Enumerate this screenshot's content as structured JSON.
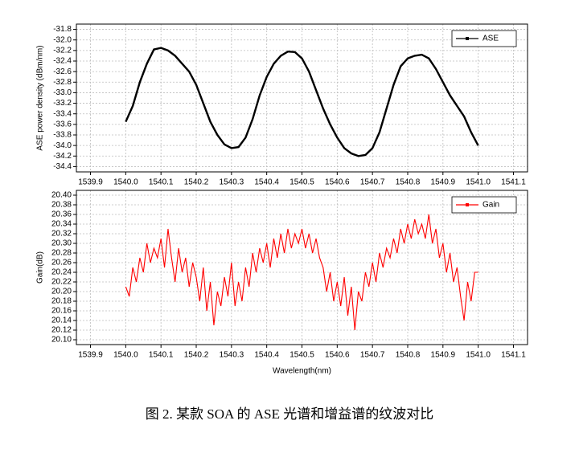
{
  "caption": "图 2. 某款 SOA 的 ASE 光谱和增益谱的纹波对比",
  "chart_data": [
    {
      "type": "line",
      "ylabel": "ASE power density (dBm/nm)",
      "legend": "upper right",
      "grid": true,
      "xlim": [
        1539.86,
        1541.14
      ],
      "ylim": [
        -34.5,
        -31.7
      ],
      "xticks": [
        1539.9,
        {
          "value": 1540,
          "label": "1540.0"
        },
        1540.1,
        1540.2,
        1540.3,
        1540.4,
        1540.5,
        1540.6,
        1540.7,
        1540.8,
        1540.9,
        {
          "value": 1541,
          "label": "1541.0"
        },
        1541.1
      ],
      "yticks": [
        -31.8,
        {
          "value": -32,
          "label": "-32.0"
        },
        -32.2,
        -32.4,
        -32.6,
        -32.8,
        {
          "value": -33,
          "label": "-33.0"
        },
        -33.2,
        -33.4,
        -33.6,
        -33.8,
        {
          "value": -34,
          "label": "-34.0"
        },
        -34.2,
        -34.4
      ],
      "x": [
        1540,
        1540.02,
        1540.04,
        1540.06,
        1540.08,
        1540.1,
        1540.12,
        1540.14,
        1540.16,
        1540.18,
        1540.2,
        1540.22,
        1540.24,
        1540.26,
        1540.28,
        1540.3,
        1540.32,
        1540.34,
        1540.36,
        1540.38,
        1540.4,
        1540.42,
        1540.44,
        1540.46,
        1540.48,
        1540.5,
        1540.52,
        1540.54,
        1540.56,
        1540.58,
        1540.6,
        1540.62,
        1540.64,
        1540.66,
        1540.68,
        1540.7,
        1540.72,
        1540.74,
        1540.76,
        1540.78,
        1540.8,
        1540.82,
        1540.84,
        1540.86,
        1540.88,
        1540.9,
        1540.92,
        1540.94,
        1540.96,
        1540.98,
        1541
      ],
      "series": [
        {
          "name": "ASE",
          "color": "#000000",
          "values": [
            -33.55,
            -33.25,
            -32.8,
            -32.45,
            -32.18,
            -32.15,
            -32.2,
            -32.3,
            -32.45,
            -32.6,
            -32.85,
            -33.2,
            -33.55,
            -33.8,
            -33.98,
            -34.05,
            -34.03,
            -33.85,
            -33.5,
            -33.05,
            -32.7,
            -32.45,
            -32.3,
            -32.22,
            -32.23,
            -32.35,
            -32.6,
            -32.95,
            -33.3,
            -33.6,
            -33.85,
            -34.05,
            -34.15,
            -34.2,
            -34.18,
            -34.05,
            -33.75,
            -33.3,
            -32.85,
            -32.5,
            -32.35,
            -32.3,
            -32.28,
            -32.35,
            -32.55,
            -32.8,
            -33.05,
            -33.25,
            -33.45,
            -33.75,
            -34.0
          ]
        }
      ]
    },
    {
      "type": "line",
      "xlabel": "Wavelength(nm)",
      "ylabel": "Gain(dB)",
      "legend": "upper right",
      "grid": true,
      "xlim": [
        1539.86,
        1541.14
      ],
      "ylim": [
        20.09,
        20.41
      ],
      "xticks": [
        1539.9,
        {
          "value": 1540,
          "label": "1540.0"
        },
        1540.1,
        1540.2,
        1540.3,
        1540.4,
        1540.5,
        1540.6,
        1540.7,
        1540.8,
        1540.9,
        {
          "value": 1541,
          "label": "1541.0"
        },
        1541.1
      ],
      "yticks": [
        {
          "value": 20.1,
          "label": "20.10"
        },
        20.12,
        20.14,
        20.16,
        20.18,
        {
          "value": 20.2,
          "label": "20.20"
        },
        20.22,
        20.24,
        20.26,
        20.28,
        {
          "value": 20.3,
          "label": "20.30"
        },
        20.32,
        20.34,
        20.36,
        20.38,
        {
          "value": 20.4,
          "label": "20.40"
        }
      ],
      "x": [
        1540,
        1540.01,
        1540.02,
        1540.03,
        1540.04,
        1540.05,
        1540.06,
        1540.07,
        1540.08,
        1540.09,
        1540.1,
        1540.11,
        1540.12,
        1540.13,
        1540.14,
        1540.15,
        1540.16,
        1540.17,
        1540.18,
        1540.19,
        1540.2,
        1540.21,
        1540.22,
        1540.23,
        1540.24,
        1540.25,
        1540.26,
        1540.27,
        1540.28,
        1540.29,
        1540.3,
        1540.31,
        1540.32,
        1540.33,
        1540.34,
        1540.35,
        1540.36,
        1540.37,
        1540.38,
        1540.39,
        1540.4,
        1540.41,
        1540.42,
        1540.43,
        1540.44,
        1540.45,
        1540.46,
        1540.47,
        1540.48,
        1540.49,
        1540.5,
        1540.51,
        1540.52,
        1540.53,
        1540.54,
        1540.55,
        1540.56,
        1540.57,
        1540.58,
        1540.59,
        1540.6,
        1540.61,
        1540.62,
        1540.63,
        1540.64,
        1540.65,
        1540.66,
        1540.67,
        1540.68,
        1540.69,
        1540.7,
        1540.71,
        1540.72,
        1540.73,
        1540.74,
        1540.75,
        1540.76,
        1540.77,
        1540.78,
        1540.79,
        1540.8,
        1540.81,
        1540.82,
        1540.83,
        1540.84,
        1540.85,
        1540.86,
        1540.87,
        1540.88,
        1540.89,
        1540.9,
        1540.91,
        1540.92,
        1540.93,
        1540.94,
        1540.95,
        1540.96,
        1540.97,
        1540.98,
        1540.99,
        1541
      ],
      "series": [
        {
          "name": "Gain",
          "color": "#ff0000",
          "values": [
            20.21,
            20.19,
            20.25,
            20.22,
            20.27,
            20.24,
            20.3,
            20.26,
            20.29,
            20.27,
            20.31,
            20.25,
            20.33,
            20.27,
            20.22,
            20.29,
            20.24,
            20.27,
            20.21,
            20.26,
            20.23,
            20.18,
            20.25,
            20.16,
            20.22,
            20.13,
            20.2,
            20.17,
            20.23,
            20.19,
            20.26,
            20.17,
            20.22,
            20.18,
            20.25,
            20.21,
            20.28,
            20.24,
            20.29,
            20.26,
            20.3,
            20.25,
            20.31,
            20.27,
            20.32,
            20.28,
            20.33,
            20.29,
            20.32,
            20.3,
            20.33,
            20.29,
            20.32,
            20.28,
            20.31,
            20.27,
            20.25,
            20.2,
            20.24,
            20.18,
            20.22,
            20.17,
            20.23,
            20.15,
            20.21,
            20.12,
            20.2,
            20.18,
            20.24,
            20.21,
            20.26,
            20.22,
            20.28,
            20.25,
            20.29,
            20.27,
            20.31,
            20.28,
            20.33,
            20.3,
            20.34,
            20.31,
            20.35,
            20.32,
            20.34,
            20.31,
            20.36,
            20.3,
            20.33,
            20.27,
            20.3,
            20.24,
            20.28,
            20.22,
            20.25,
            20.19,
            20.14,
            20.22,
            20.18,
            20.24,
            20.24
          ]
        }
      ]
    }
  ]
}
